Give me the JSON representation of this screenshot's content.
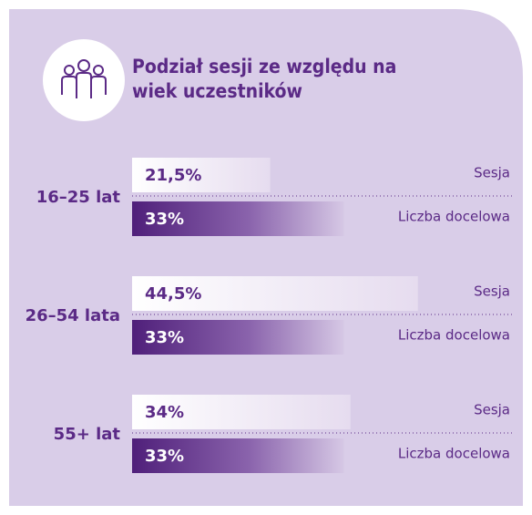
{
  "chart_data": {
    "type": "bar",
    "title": "Podział sesji ze względu na wiek uczestników",
    "categories": [
      "16–25 lat",
      "26–54 lata",
      "55+ lat"
    ],
    "series": [
      {
        "name": "Sesja",
        "color": "#ffffff",
        "values": [
          21.5,
          44.5,
          34
        ],
        "value_labels": [
          "21,5%",
          "44,5%",
          "34%"
        ]
      },
      {
        "name": "Liczba docelowa",
        "color": "#4f1f7a",
        "values": [
          33,
          33,
          33
        ],
        "value_labels": [
          "33%",
          "33%",
          "33%"
        ]
      }
    ]
  }
}
